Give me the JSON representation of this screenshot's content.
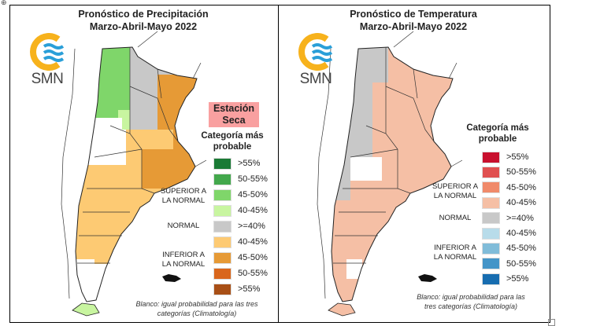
{
  "precipitation": {
    "title_line1": "Pronóstico de Precipitación",
    "title_line2": "Marzo-Abril-Mayo 2022",
    "logo_text": "SMN",
    "badge": "Estación Seca",
    "legend_title": "Categoría más probable",
    "legend": [
      {
        "label": ">55%",
        "color": "#1a7a35"
      },
      {
        "label": "50-55%",
        "color": "#43a84c"
      },
      {
        "label": "45-50%",
        "color": "#7fd66a"
      },
      {
        "label": "40-45%",
        "color": "#c8f5a0"
      },
      {
        "label": ">=40%",
        "color": "#c8c8c8"
      },
      {
        "label": "40-45%",
        "color": "#fdca73"
      },
      {
        "label": "45-50%",
        "color": "#e69a36"
      },
      {
        "label": "50-55%",
        "color": "#d9661c"
      },
      {
        "label": ">55%",
        "color": "#a84f16"
      }
    ],
    "group_above": "SUPERIOR A LA NORMAL",
    "group_normal": "NORMAL",
    "group_below": "INFERIOR A LA NORMAL",
    "footer": "Blanco: igual probabilidad para las tres categorías (Climatología)"
  },
  "temperature": {
    "title_line1": "Pronóstico de Temperatura",
    "title_line2": "Marzo-Abril-Mayo 2022",
    "logo_text": "SMN",
    "legend_title": "Categoría más probable",
    "legend": [
      {
        "label": ">55%",
        "color": "#c8102e"
      },
      {
        "label": "50-55%",
        "color": "#e05050"
      },
      {
        "label": "45-50%",
        "color": "#f08a6a"
      },
      {
        "label": "40-45%",
        "color": "#f5bfa5"
      },
      {
        "label": ">=40%",
        "color": "#c8c8c8"
      },
      {
        "label": "40-45%",
        "color": "#b8dcea"
      },
      {
        "label": "45-50%",
        "color": "#80bcd9"
      },
      {
        "label": "50-55%",
        "color": "#4495c8"
      },
      {
        "label": ">55%",
        "color": "#176db0"
      }
    ],
    "group_above": "SUPERIOR A LA NORMAL",
    "group_normal": "NORMAL",
    "group_below": "INFERIOR A LA NORMAL",
    "footer": "Blanco: igual probabilidad para las tres categorías (Climatología)"
  }
}
